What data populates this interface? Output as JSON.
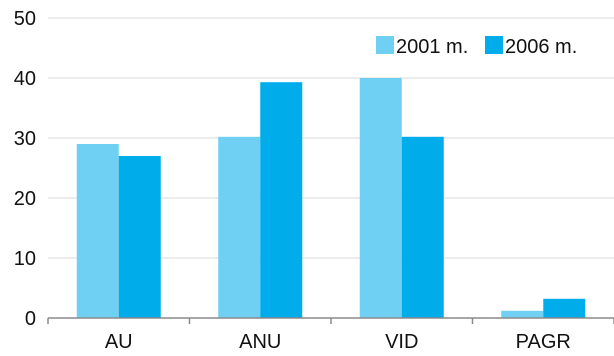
{
  "chart_data": {
    "type": "bar",
    "categories": [
      "AU",
      "ANU",
      "VID",
      "PAGR"
    ],
    "series": [
      {
        "name": "2001 m.",
        "color": "#6fd0f3",
        "values": [
          29.0,
          30.2,
          40.0,
          1.2
        ]
      },
      {
        "name": "2006 m.",
        "color": "#00adea",
        "values": [
          27.0,
          39.3,
          30.2,
          3.2
        ]
      }
    ],
    "ylim": [
      0,
      50
    ],
    "yticks": [
      0,
      10,
      20,
      30,
      40,
      50
    ],
    "grid": true,
    "legend_position": "top-right",
    "title": "",
    "xlabel": "",
    "ylabel": ""
  }
}
